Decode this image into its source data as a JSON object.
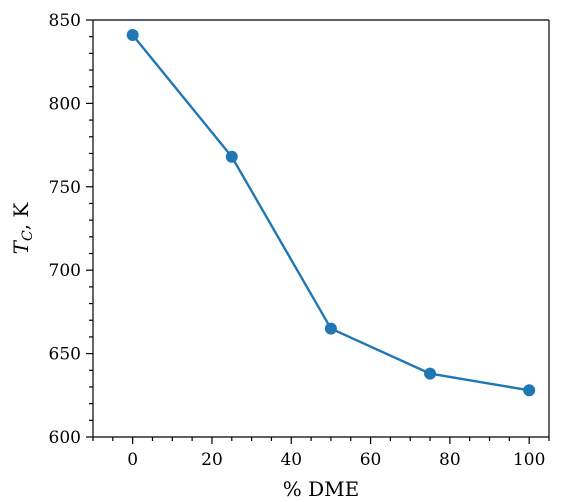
{
  "chart_data": {
    "type": "line",
    "xlabel": "% DME",
    "ylabel_main": "T",
    "ylabel_sub": "C",
    "ylabel_rest": ", K",
    "xlim": [
      -10,
      105
    ],
    "ylim": [
      600,
      850
    ],
    "xticks": [
      0,
      20,
      40,
      60,
      80,
      100
    ],
    "xticks_minor": [
      -10,
      -5,
      5,
      10,
      15,
      25,
      30,
      35,
      45,
      50,
      55,
      65,
      70,
      75,
      85,
      90,
      95,
      105
    ],
    "yticks": [
      600,
      650,
      700,
      750,
      800,
      850
    ],
    "yticks_minor": [
      610,
      620,
      630,
      640,
      660,
      670,
      680,
      690,
      710,
      720,
      730,
      740,
      760,
      770,
      780,
      790,
      810,
      820,
      830,
      840
    ],
    "grid": false,
    "series": [
      {
        "color": "#1f77b4",
        "x": [
          0,
          25,
          50,
          75,
          100
        ],
        "y": [
          841,
          768,
          665,
          638,
          628
        ]
      }
    ]
  }
}
